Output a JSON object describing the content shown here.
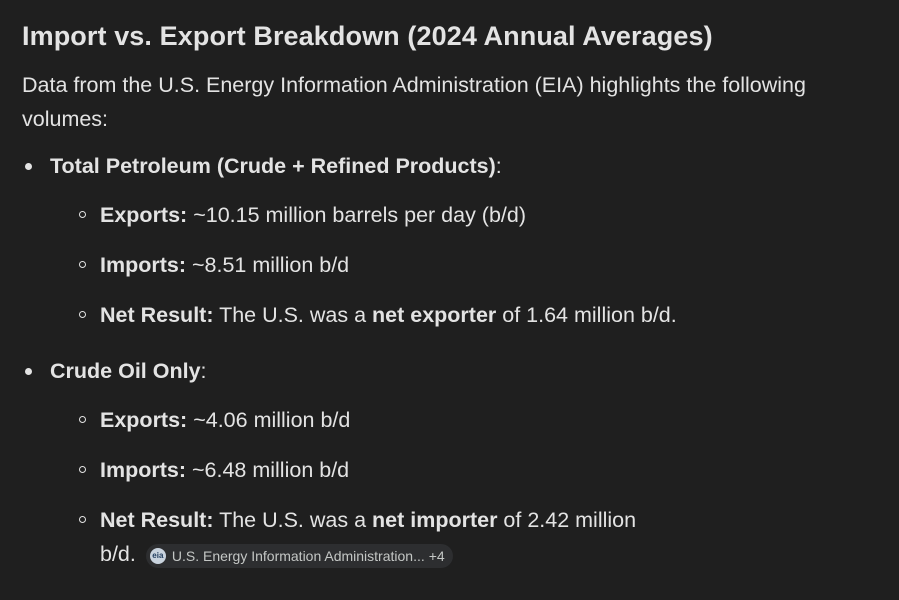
{
  "heading": "Import vs. Export Breakdown (2024 Annual Averages)",
  "intro": "Data from the U.S. Energy Information Administration (EIA) highlights the following volumes:",
  "sections": [
    {
      "title": "Total Petroleum (Crude + Refined Products)",
      "suffix": ":",
      "items": [
        {
          "label": "Exports:",
          "text": " ~10.15 million barrels per day (b/d)"
        },
        {
          "label": "Imports:",
          "text": " ~8.51 million b/d"
        },
        {
          "label": "Net Result:",
          "pre": " The U.S. was a ",
          "strong": "net exporter",
          "post": " of 1.64 million b/d."
        }
      ]
    },
    {
      "title": "Crude Oil Only",
      "suffix": ":",
      "items": [
        {
          "label": "Exports:",
          "text": " ~4.06 million b/d"
        },
        {
          "label": "Imports:",
          "text": " ~6.48 million b/d"
        },
        {
          "label": "Net Result:",
          "pre": " The U.S. was a ",
          "strong": "net importer",
          "post": " of 2.42 million b/d."
        }
      ]
    }
  ],
  "source_chip": {
    "logo_text": "eia",
    "label": "U.S. Energy Information Administration...",
    "count": "+4"
  }
}
